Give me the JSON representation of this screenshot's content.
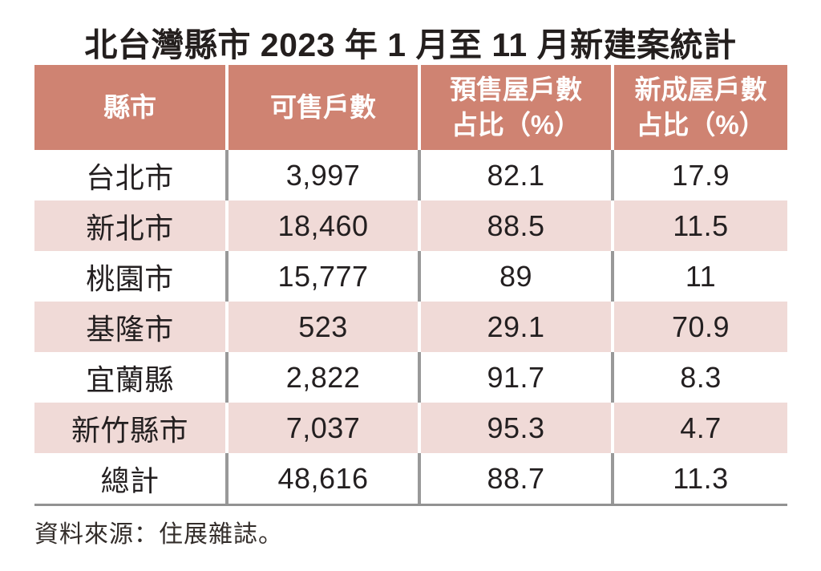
{
  "title": "北台灣縣市 2023 年 1 月至 11 月新建案統計",
  "source": "資料來源：住展雜誌。",
  "table": {
    "columns": [
      {
        "line1": "縣市",
        "line2": ""
      },
      {
        "line1": "可售戶數",
        "line2": ""
      },
      {
        "line1": "預售屋戶數",
        "line2": "占比（%）"
      },
      {
        "line1": "新成屋戶數",
        "line2": "占比（%）"
      }
    ],
    "rows": [
      {
        "county": "台北市",
        "sellable": "3,997",
        "presale_pct": "82.1",
        "new_pct": "17.9"
      },
      {
        "county": "新北市",
        "sellable": "18,460",
        "presale_pct": "88.5",
        "new_pct": "11.5"
      },
      {
        "county": "桃園市",
        "sellable": "15,777",
        "presale_pct": "89",
        "new_pct": "11"
      },
      {
        "county": "基隆市",
        "sellable": "523",
        "presale_pct": "29.1",
        "new_pct": "70.9"
      },
      {
        "county": "宜蘭縣",
        "sellable": "2,822",
        "presale_pct": "91.7",
        "new_pct": "8.3"
      },
      {
        "county": "新竹縣市",
        "sellable": "7,037",
        "presale_pct": "95.3",
        "new_pct": "4.7"
      },
      {
        "county": "總計",
        "sellable": "48,616",
        "presale_pct": "88.7",
        "new_pct": "11.3"
      }
    ]
  },
  "colors": {
    "page-bg": "#ffffff",
    "title-color": "#241f1e",
    "header-bg": "#cf8372",
    "header-text": "#ffffff",
    "row-white": "#ffffff",
    "row-pink": "#f0dad7",
    "cell-text": "#231f20",
    "divider-gray": "#999999",
    "divider-light": "#ffffff",
    "rule-color": "#929292",
    "source-color": "#332d2a"
  },
  "chart_data": {
    "type": "table",
    "title": "北台灣縣市 2023 年 1 月至 11 月新建案統計",
    "columns": [
      "縣市",
      "可售戶數",
      "預售屋戶數占比（%）",
      "新成屋戶數占比（%）"
    ],
    "rows": [
      [
        "台北市",
        3997,
        82.1,
        17.9
      ],
      [
        "新北市",
        18460,
        88.5,
        11.5
      ],
      [
        "桃園市",
        15777,
        89,
        11
      ],
      [
        "基隆市",
        523,
        29.1,
        70.9
      ],
      [
        "宜蘭縣",
        2822,
        91.7,
        8.3
      ],
      [
        "新竹縣市",
        7037,
        95.3,
        4.7
      ],
      [
        "總計",
        48616,
        88.7,
        11.3
      ]
    ],
    "source_note": "資料來源：住展雜誌。",
    "layout_hints": {
      "zebra_striping": [
        "white",
        "pink",
        "white",
        "pink",
        "white",
        "pink",
        "white"
      ],
      "header_style": "salmon background, white text",
      "grid": "vertical dividers only, bottom rule under last row"
    }
  }
}
